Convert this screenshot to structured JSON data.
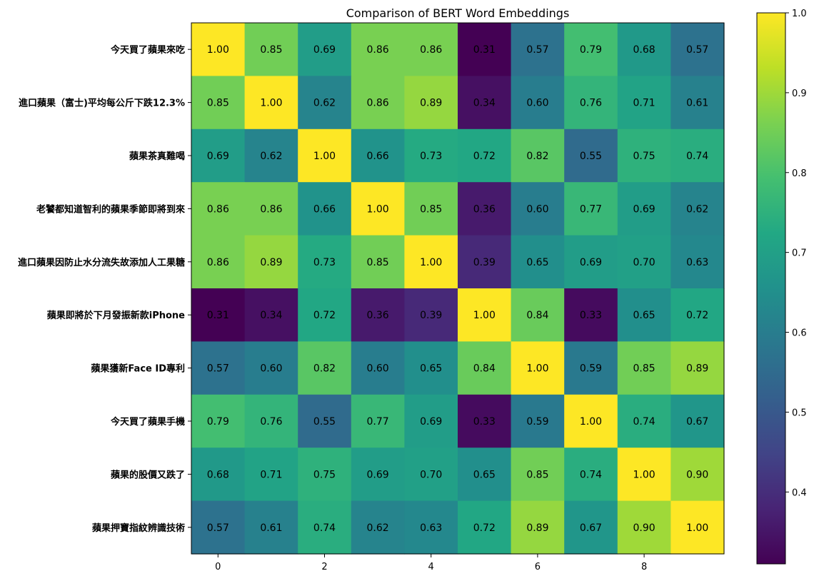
{
  "chart_data": {
    "type": "heatmap",
    "title": "Comparison of BERT Word Embeddings",
    "xlabel": "",
    "ylabel": "",
    "x_ticks": [
      0,
      2,
      4,
      6,
      8
    ],
    "y_labels": [
      "今天買了蘋果來吃",
      "進口蘋果（富士)平均每公斤下跌12.3%",
      "蘋果茶真難喝",
      "老饕都知道智利的蘋果季節即將到來",
      "進口蘋果因防止水分流失故添加人工果糖",
      "蘋果即將於下月發振新款iPhone",
      "蘋果獲新Face ID專利",
      "今天買了蘋果手機",
      "蘋果的股價又跌了",
      "蘋果押寶指紋辨識技術"
    ],
    "matrix": [
      [
        1.0,
        0.85,
        0.69,
        0.86,
        0.86,
        0.31,
        0.57,
        0.79,
        0.68,
        0.57
      ],
      [
        0.85,
        1.0,
        0.62,
        0.86,
        0.89,
        0.34,
        0.6,
        0.76,
        0.71,
        0.61
      ],
      [
        0.69,
        0.62,
        1.0,
        0.66,
        0.73,
        0.72,
        0.82,
        0.55,
        0.75,
        0.74
      ],
      [
        0.86,
        0.86,
        0.66,
        1.0,
        0.85,
        0.36,
        0.6,
        0.77,
        0.69,
        0.62
      ],
      [
        0.86,
        0.89,
        0.73,
        0.85,
        1.0,
        0.39,
        0.65,
        0.69,
        0.7,
        0.63
      ],
      [
        0.31,
        0.34,
        0.72,
        0.36,
        0.39,
        1.0,
        0.84,
        0.33,
        0.65,
        0.72
      ],
      [
        0.57,
        0.6,
        0.82,
        0.6,
        0.65,
        0.84,
        1.0,
        0.59,
        0.85,
        0.89
      ],
      [
        0.79,
        0.76,
        0.55,
        0.77,
        0.69,
        0.33,
        0.59,
        1.0,
        0.74,
        0.67
      ],
      [
        0.68,
        0.71,
        0.75,
        0.69,
        0.7,
        0.65,
        0.85,
        0.74,
        1.0,
        0.9
      ],
      [
        0.57,
        0.61,
        0.74,
        0.62,
        0.63,
        0.72,
        0.89,
        0.67,
        0.9,
        1.0
      ]
    ],
    "color_range": [
      0.31,
      1.0
    ],
    "colormap": "viridis",
    "colorbar_ticks": [
      "0.4",
      "0.5",
      "0.6",
      "0.7",
      "0.8",
      "0.9",
      "1.0"
    ],
    "grid": false
  }
}
